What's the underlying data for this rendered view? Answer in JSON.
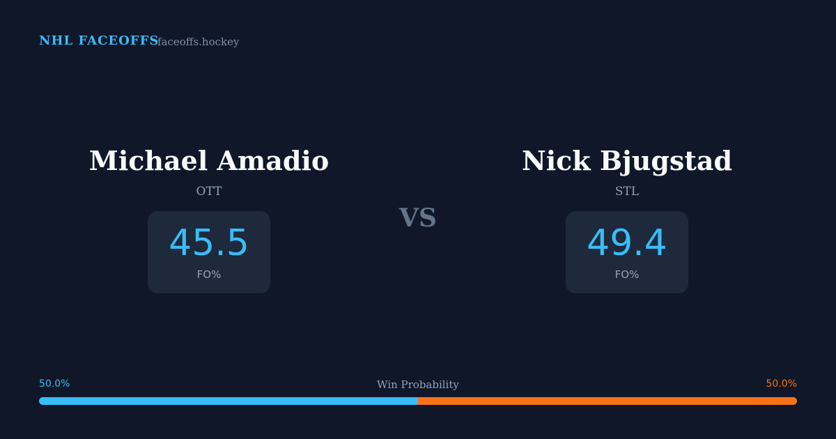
{
  "header": {
    "title": "NHL FACEOFFS",
    "site": "faceoffs.hockey"
  },
  "players": [
    {
      "name": "Michael Amadio",
      "team": "OTT",
      "fo_value": 45.5,
      "fo_label": "FO%"
    },
    {
      "name": "Nick Bjugstad",
      "team": "STL",
      "fo_value": 49.4,
      "fo_label": "FO%"
    }
  ],
  "versus": "VS",
  "win_probability": {
    "label": "Win Probability",
    "left": {
      "value": 50,
      "label": "50.0%"
    },
    "right": {
      "value": 50,
      "label": "50.0%"
    }
  }
}
